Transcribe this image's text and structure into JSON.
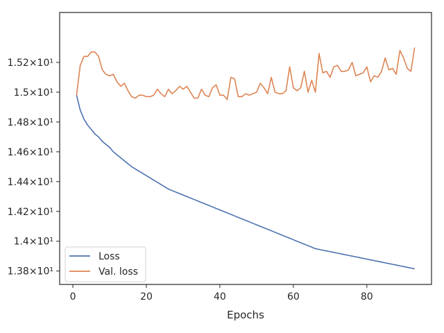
{
  "chart_data": {
    "type": "line",
    "xlabel": "Epochs",
    "ylabel": "",
    "xlim": [
      -3.6,
      97.6
    ],
    "ylim": [
      13.71,
      15.535
    ],
    "x_ticks": [
      0,
      20,
      40,
      60,
      80
    ],
    "x_tick_labels": [
      "0",
      "20",
      "40",
      "60",
      "80"
    ],
    "y_ticks": [
      13.8,
      14.0,
      14.2,
      14.4,
      14.6,
      14.8,
      15.0,
      15.2
    ],
    "y_tick_labels": [
      "1.38×10¹",
      "1.4×10¹",
      "1.42×10¹",
      "1.44×10¹",
      "1.46×10¹",
      "1.48×10¹",
      "1.5×10¹",
      "1.52×10¹"
    ],
    "grid": false,
    "legend_position": "lower-left",
    "x": [
      1,
      2,
      3,
      4,
      5,
      6,
      7,
      8,
      9,
      10,
      11,
      12,
      13,
      14,
      15,
      16,
      17,
      18,
      19,
      20,
      21,
      22,
      23,
      24,
      25,
      26,
      27,
      28,
      29,
      30,
      31,
      32,
      33,
      34,
      35,
      36,
      37,
      38,
      39,
      40,
      41,
      42,
      43,
      44,
      45,
      46,
      47,
      48,
      49,
      50,
      51,
      52,
      53,
      54,
      55,
      56,
      57,
      58,
      59,
      60,
      61,
      62,
      63,
      64,
      65,
      66,
      67,
      68,
      69,
      70,
      71,
      72,
      73,
      74,
      75,
      76,
      77,
      78,
      79,
      80,
      81,
      82,
      83,
      84,
      85,
      86,
      87,
      88,
      89,
      90,
      91,
      92,
      93
    ],
    "series": [
      {
        "name": "Loss",
        "color": "#4c72b0",
        "values": [
          14.98,
          14.88,
          14.82,
          14.78,
          14.75,
          14.72,
          14.7,
          14.67,
          14.65,
          14.63,
          14.6,
          14.58,
          14.56,
          14.54,
          14.52,
          14.5,
          14.485,
          14.47,
          14.455,
          14.44,
          14.425,
          14.41,
          14.395,
          14.38,
          14.365,
          14.35,
          14.34,
          14.33,
          14.32,
          14.31,
          14.3,
          14.29,
          14.28,
          14.27,
          14.26,
          14.25,
          14.24,
          14.23,
          14.22,
          14.21,
          14.2,
          14.19,
          14.18,
          14.17,
          14.16,
          14.15,
          14.14,
          14.13,
          14.12,
          14.11,
          14.1,
          14.09,
          14.08,
          14.07,
          14.06,
          14.05,
          14.04,
          14.03,
          14.02,
          14.01,
          14.0,
          13.99,
          13.98,
          13.97,
          13.96,
          13.95,
          13.945,
          13.94,
          13.935,
          13.93,
          13.925,
          13.92,
          13.915,
          13.91,
          13.905,
          13.9,
          13.895,
          13.89,
          13.885,
          13.88,
          13.875,
          13.87,
          13.865,
          13.86,
          13.855,
          13.85,
          13.845,
          13.84,
          13.835,
          13.83,
          13.825,
          13.82,
          13.815
        ]
      },
      {
        "name": "Val. loss",
        "color": "#dd8452",
        "values": [
          14.98,
          15.18,
          15.24,
          15.24,
          15.27,
          15.27,
          15.24,
          15.15,
          15.12,
          15.11,
          15.12,
          15.07,
          15.04,
          15.06,
          15.01,
          14.97,
          14.96,
          14.98,
          14.98,
          14.97,
          14.97,
          14.98,
          15.02,
          14.99,
          14.97,
          15.02,
          14.99,
          15.01,
          15.04,
          15.02,
          15.04,
          15.0,
          14.96,
          14.96,
          15.02,
          14.98,
          14.97,
          15.03,
          15.05,
          14.98,
          14.98,
          14.95,
          15.1,
          15.09,
          14.97,
          14.97,
          14.99,
          14.98,
          14.99,
          15.0,
          15.06,
          15.03,
          14.99,
          15.1,
          15.0,
          14.99,
          14.99,
          15.01,
          15.17,
          15.03,
          15.01,
          15.03,
          15.14,
          15.0,
          15.08,
          15.0,
          15.26,
          15.13,
          15.14,
          15.1,
          15.17,
          15.18,
          15.14,
          15.14,
          15.15,
          15.2,
          15.11,
          15.12,
          15.13,
          15.17,
          15.07,
          15.11,
          15.1,
          15.14,
          15.23,
          15.15,
          15.16,
          15.12,
          15.28,
          15.23,
          15.16,
          15.14,
          15.3
        ]
      }
    ]
  }
}
